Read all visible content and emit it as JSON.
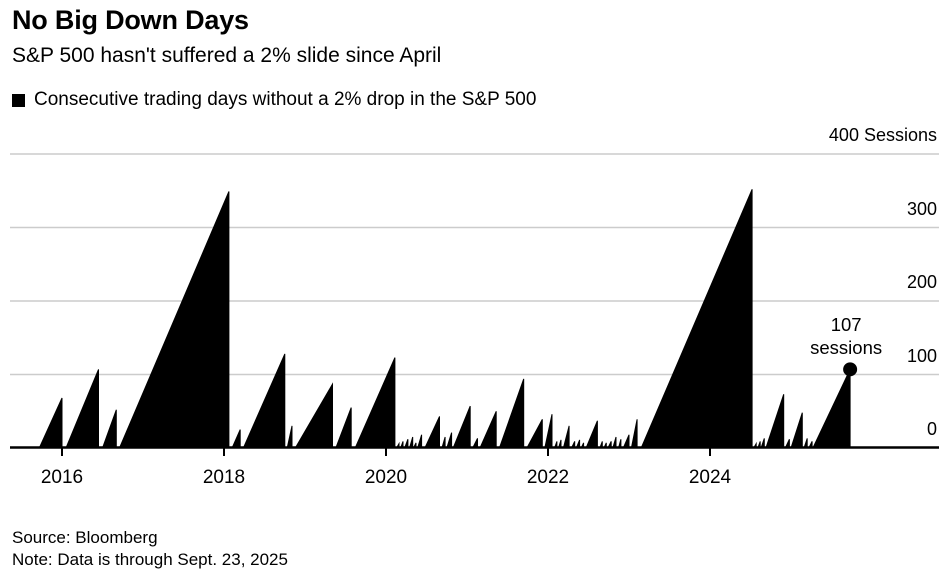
{
  "header": {
    "title": "No Big Down Days",
    "subtitle": "S&P 500 hasn't suffered a 2% slide since April"
  },
  "legend": {
    "label": "Consecutive trading days without a 2% drop in the S&P 500",
    "swatch_color": "#000000"
  },
  "annotation": {
    "line1": "107",
    "line2": "sessions"
  },
  "footer": {
    "source": "Source: Bloomberg",
    "note": "Note: Data is through Sept. 23, 2025"
  },
  "colors": {
    "series": "#000000",
    "grid": "#cccccc",
    "axis": "#000000",
    "background": "#ffffff",
    "text": "#000000"
  },
  "chart_data": {
    "type": "area",
    "title": "No Big Down Days",
    "subtitle": "S&P 500 hasn't suffered a 2% slide since April",
    "series_name": "Consecutive trading days without a 2% drop in the S&P 500",
    "x_unit": "year",
    "y_unit": "sessions",
    "grid": true,
    "x_axis": {
      "ticks": [
        2016,
        2018,
        2020,
        2022,
        2024
      ],
      "labels": [
        "2016",
        "2018",
        "2020",
        "2022",
        "2024"
      ],
      "range": [
        2015.35,
        2026.8
      ]
    },
    "y_axis": {
      "side": "right",
      "ticks": [
        0,
        100,
        200,
        300,
        400
      ],
      "labels": [
        "0",
        "100",
        "200",
        "300",
        "400 Sessions"
      ],
      "range": [
        0,
        400
      ]
    },
    "runs_comment": "Each run: [start_year, end_year, peak_sessions]; value rises from 0 at start to peak at end, then a 2% drop resets it to 0.",
    "runs": [
      [
        2015.72,
        2016.0,
        68
      ],
      [
        2016.05,
        2016.45,
        107
      ],
      [
        2016.5,
        2016.67,
        52
      ],
      [
        2016.71,
        2018.06,
        349
      ],
      [
        2018.1,
        2018.2,
        25
      ],
      [
        2018.24,
        2018.75,
        128
      ],
      [
        2018.78,
        2018.84,
        30
      ],
      [
        2018.88,
        2019.34,
        87
      ],
      [
        2019.38,
        2019.57,
        55
      ],
      [
        2019.62,
        2020.11,
        123
      ],
      [
        2020.13,
        2020.16,
        6
      ],
      [
        2020.18,
        2020.21,
        9
      ],
      [
        2020.23,
        2020.27,
        12
      ],
      [
        2020.29,
        2020.33,
        15
      ],
      [
        2020.34,
        2020.37,
        7
      ],
      [
        2020.39,
        2020.44,
        18
      ],
      [
        2020.48,
        2020.66,
        43
      ],
      [
        2020.69,
        2020.73,
        15
      ],
      [
        2020.75,
        2020.81,
        21
      ],
      [
        2020.83,
        2021.04,
        57
      ],
      [
        2021.07,
        2021.13,
        13
      ],
      [
        2021.16,
        2021.36,
        50
      ],
      [
        2021.4,
        2021.7,
        94
      ],
      [
        2021.74,
        2021.93,
        39
      ],
      [
        2021.96,
        2022.05,
        46
      ],
      [
        2022.08,
        2022.11,
        9
      ],
      [
        2022.13,
        2022.16,
        11
      ],
      [
        2022.19,
        2022.26,
        30
      ],
      [
        2022.29,
        2022.33,
        9
      ],
      [
        2022.35,
        2022.39,
        11
      ],
      [
        2022.41,
        2022.44,
        7
      ],
      [
        2022.47,
        2022.61,
        37
      ],
      [
        2022.64,
        2022.67,
        9
      ],
      [
        2022.69,
        2022.72,
        7
      ],
      [
        2022.74,
        2022.78,
        9
      ],
      [
        2022.8,
        2022.84,
        15
      ],
      [
        2022.87,
        2022.9,
        12
      ],
      [
        2022.93,
        2023.0,
        18
      ],
      [
        2023.03,
        2023.1,
        39
      ],
      [
        2023.15,
        2024.52,
        352
      ],
      [
        2024.54,
        2024.57,
        6
      ],
      [
        2024.59,
        2024.62,
        9
      ],
      [
        2024.63,
        2024.67,
        13
      ],
      [
        2024.69,
        2024.91,
        73
      ],
      [
        2024.93,
        2024.98,
        12
      ],
      [
        2025.0,
        2025.14,
        48
      ],
      [
        2025.16,
        2025.2,
        13
      ],
      [
        2025.22,
        2025.26,
        9
      ],
      [
        2025.27,
        2025.73,
        107
      ]
    ],
    "current_point": {
      "x": 2025.73,
      "y": 107,
      "label": "107 sessions",
      "marker": "dot"
    }
  }
}
